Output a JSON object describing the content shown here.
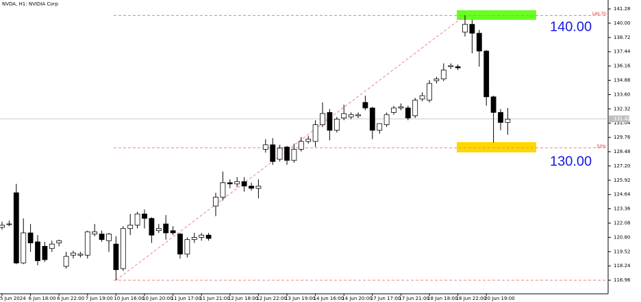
{
  "chart_data": {
    "type": "candlestick",
    "title": "NVDA, H1:  NVIDIA Corp",
    "categories": [
      "5 Jun 2024",
      null,
      null,
      null,
      "6 Jun 18:00",
      null,
      null,
      null,
      "6 Jun 22:00",
      null,
      null,
      null,
      "7 Jun 19:00",
      null,
      null,
      null,
      "10 Jun 16:00",
      null,
      null,
      null,
      "10 Jun 20:00",
      null,
      null,
      null,
      "11 Jun 17:00",
      null,
      null,
      null,
      "11 Jun 21:00",
      null,
      null,
      null,
      "12 Jun 18:00",
      null,
      null,
      null,
      "12 Jun 22:00",
      null,
      null,
      null,
      "13 Jun 19:00",
      null,
      null,
      null,
      "14 Jun 16:00",
      null,
      null,
      null,
      "14 Jun 20:00",
      null,
      null,
      null,
      "17 Jun 17:00",
      null,
      null,
      null,
      "17 Jun 21:00",
      null,
      null,
      null,
      "18 Jun 18:00",
      null,
      null,
      null,
      "18 Jun 22:00",
      null,
      null,
      null,
      "20 Jun 19:00",
      null,
      null,
      null
    ],
    "open": [
      121.7,
      122.0,
      124.8,
      118.5,
      121.2,
      120.4,
      120.0,
      119.8,
      120.3,
      118.2,
      119.2,
      119.2,
      119.2,
      121.1,
      121.1,
      120.5,
      120.2,
      118.0,
      121.6,
      121.9,
      122.9,
      122.5,
      121.4,
      122.0,
      121.4,
      121.1,
      119.3,
      120.6,
      120.8,
      121.0,
      123.6,
      124.4,
      125.7,
      125.6,
      125.8,
      125.4,
      125.2,
      128.7,
      129.1,
      127.8,
      128.9,
      127.7,
      128.7,
      129.4,
      129.4,
      130.9,
      132.0,
      130.4,
      131.5,
      131.6,
      131.7,
      132.9,
      132.4,
      130.4,
      130.9,
      132.0,
      132.4,
      132.4,
      131.7,
      133.2,
      133.1,
      134.85,
      135.0,
      136.1,
      136.1,
      139.2,
      139.9,
      139.1,
      137.5,
      133.4,
      132.0,
      131.1
    ],
    "high": [
      122.2,
      122.3,
      125.6,
      122.5,
      122.0,
      121.0,
      120.4,
      120.5,
      120.6,
      119.5,
      119.6,
      119.5,
      121.4,
      122.0,
      121.4,
      121.2,
      120.9,
      121.8,
      122.9,
      123.1,
      123.3,
      122.6,
      122.0,
      122.8,
      121.8,
      121.2,
      120.8,
      121.2,
      121.2,
      121.2,
      124.8,
      126.7,
      126.0,
      126.2,
      126.2,
      125.7,
      126.0,
      129.6,
      129.7,
      129.1,
      129.0,
      129.2,
      129.8,
      129.9,
      131.3,
      132.9,
      132.3,
      131.6,
      132.7,
      132.0,
      132.0,
      133.5,
      132.5,
      130.8,
      132.0,
      132.6,
      132.8,
      132.6,
      133.3,
      133.8,
      134.9,
      135.2,
      136.4,
      136.4,
      136.3,
      140.7,
      140.3,
      139.4,
      137.6,
      133.5,
      132.3,
      132.4
    ],
    "low": [
      121.5,
      121.8,
      118.4,
      118.4,
      119.5,
      118.3,
      118.6,
      119.5,
      120.0,
      118.0,
      118.9,
      119.0,
      118.9,
      120.9,
      120.4,
      119.5,
      116.96,
      117.8,
      121.0,
      121.6,
      121.6,
      120.3,
      121.2,
      120.6,
      121.0,
      118.9,
      119.0,
      120.3,
      120.5,
      120.5,
      122.7,
      124.1,
      125.2,
      125.3,
      124.9,
      125.0,
      124.3,
      128.4,
      127.3,
      127.6,
      127.3,
      127.5,
      128.5,
      129.2,
      128.9,
      130.7,
      129.5,
      130.2,
      131.3,
      131.4,
      131.5,
      132.2,
      129.6,
      130.1,
      130.7,
      131.8,
      132.2,
      131.3,
      131.5,
      133.0,
      132.9,
      134.6,
      134.8,
      135.9,
      135.8,
      138.8,
      137.3,
      136.1,
      132.6,
      129.3,
      130.4,
      130.0
    ],
    "close": [
      121.9,
      122.0,
      118.5,
      121.2,
      120.3,
      118.7,
      118.8,
      120.2,
      120.5,
      119.1,
      119.4,
      119.3,
      121.3,
      121.3,
      120.6,
      121.1,
      117.9,
      121.6,
      121.9,
      122.9,
      122.5,
      121.0,
      121.6,
      121.2,
      121.2,
      119.3,
      120.6,
      120.8,
      121.0,
      120.7,
      124.4,
      125.7,
      125.6,
      125.8,
      125.4,
      125.2,
      125.4,
      129.1,
      127.6,
      128.8,
      127.7,
      128.7,
      129.4,
      129.6,
      130.9,
      131.9,
      130.4,
      131.4,
      131.9,
      131.8,
      131.8,
      132.4,
      130.4,
      131.0,
      131.8,
      132.4,
      132.5,
      131.5,
      133.1,
      133.5,
      134.6,
      135.0,
      135.8,
      136.2,
      136.0,
      139.9,
      139.1,
      137.5,
      133.4,
      132.0,
      131.1,
      131.4
    ],
    "up_color": "#ffffff",
    "down_color": "#000000",
    "wick_color": "#000000",
    "ylim": [
      115.74,
      142.08
    ],
    "yticks": [
      141.28,
      {
        "value": 140,
        "label": "140.00"
      },
      138.72,
      137.44,
      136.16,
      134.88,
      {
        "value": 133.6,
        "label": "133.60"
      },
      132.32,
      131.04,
      129.76,
      128.48,
      {
        "value": 127.2,
        "label": "127.20"
      },
      125.92,
      124.64,
      123.36,
      122.08,
      {
        "value": 120.8,
        "label": "120.80"
      },
      119.52,
      118.24,
      116.96
    ],
    "current_price": 131.42,
    "fibo": {
      "high": {
        "value": 140.7,
        "label": "140.70"
      },
      "low": 116.96,
      "level": 128.83,
      "level_label": "50%",
      "color": "#f08080"
    },
    "zones": [
      {
        "from": 140.3,
        "to": 141.16,
        "color": "#66ff22",
        "label": "140.00"
      },
      {
        "from": 128.42,
        "to": 129.34,
        "color": "#ffd700",
        "label": "130.00"
      }
    ]
  }
}
